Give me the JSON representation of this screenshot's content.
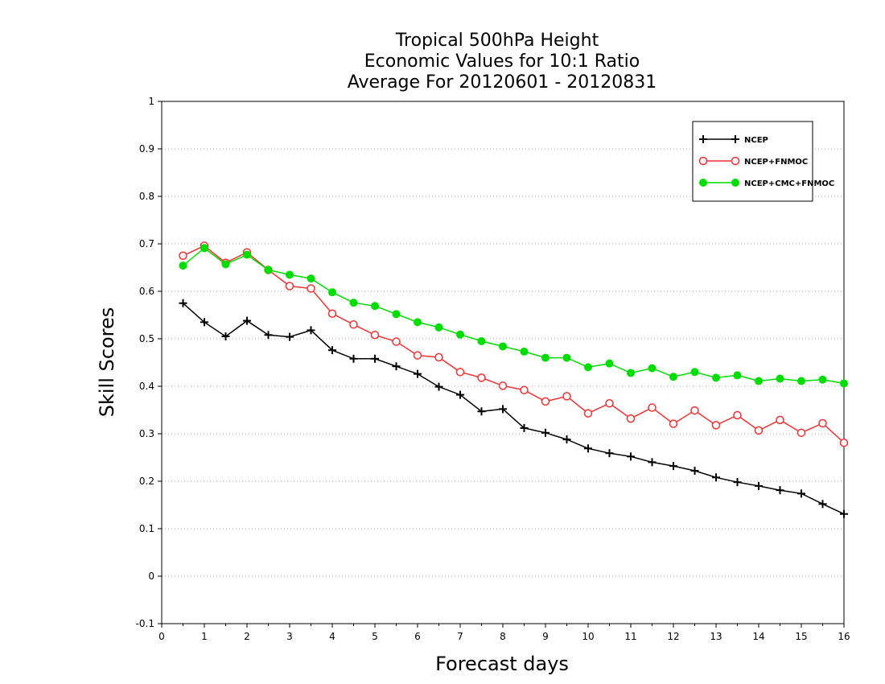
{
  "chart_data": {
    "type": "line",
    "title_lines": [
      "Tropical 500hPa Height",
      "Economic Values for 10:1 Ratio",
      "Average For 20120601 - 20120831"
    ],
    "xlabel": "Forecast days",
    "ylabel": "Skill Scores",
    "xlim": [
      0,
      16
    ],
    "ylim": [
      -0.1,
      1
    ],
    "x_ticks": [
      0,
      1,
      2,
      3,
      4,
      5,
      6,
      7,
      8,
      9,
      10,
      11,
      12,
      13,
      14,
      15,
      16
    ],
    "x_tick_labels": [
      "0",
      "1",
      "2",
      "3",
      "4",
      "5",
      "6",
      "7",
      "8",
      "9",
      "10",
      "11",
      "12",
      "13",
      "14",
      "15",
      "16"
    ],
    "y_ticks": [
      -0.1,
      0,
      0.1,
      0.2,
      0.3,
      0.4,
      0.5,
      0.6,
      0.7,
      0.8,
      0.9,
      1
    ],
    "y_tick_labels": [
      "-0.1",
      "0",
      "0.1",
      "0.2",
      "0.3",
      "0.4",
      "0.5",
      "0.6",
      "0.7",
      "0.8",
      "0.9",
      "1"
    ],
    "grid": "horizontal dotted",
    "legend_position": "top-right",
    "x": [
      0.5,
      1,
      1.5,
      2,
      2.5,
      3,
      3.5,
      4,
      4.5,
      5,
      5.5,
      6,
      6.5,
      7,
      7.5,
      8,
      8.5,
      9,
      9.5,
      10,
      10.5,
      11,
      11.5,
      12,
      12.5,
      13,
      13.5,
      14,
      14.5,
      15,
      15.5,
      16
    ],
    "series": [
      {
        "name": "NCEP",
        "color": "#000000",
        "marker": "plus",
        "values": [
          0.575,
          0.535,
          0.505,
          0.538,
          0.508,
          0.504,
          0.518,
          0.476,
          0.458,
          0.458,
          0.442,
          0.426,
          0.399,
          0.382,
          0.347,
          0.352,
          0.312,
          0.302,
          0.288,
          0.269,
          0.259,
          0.252,
          0.24,
          0.232,
          0.222,
          0.208,
          0.198,
          0.19,
          0.181,
          0.174,
          0.152,
          0.131
        ]
      },
      {
        "name": "NCEP+FNMOC",
        "color": "#ee3333",
        "marker": "open-circle",
        "values": [
          0.675,
          0.696,
          0.66,
          0.682,
          0.645,
          0.611,
          0.606,
          0.553,
          0.53,
          0.508,
          0.494,
          0.465,
          0.461,
          0.43,
          0.418,
          0.401,
          0.392,
          0.368,
          0.379,
          0.343,
          0.364,
          0.332,
          0.355,
          0.321,
          0.349,
          0.318,
          0.339,
          0.307,
          0.329,
          0.302,
          0.322,
          0.281
        ]
      },
      {
        "name": "NCEP+CMC+FNMOC",
        "color": "#00dd00",
        "marker": "filled-circle",
        "values": [
          0.654,
          0.691,
          0.657,
          0.677,
          0.645,
          0.635,
          0.627,
          0.598,
          0.576,
          0.569,
          0.552,
          0.535,
          0.524,
          0.509,
          0.495,
          0.484,
          0.473,
          0.46,
          0.46,
          0.44,
          0.448,
          0.428,
          0.438,
          0.42,
          0.43,
          0.418,
          0.423,
          0.411,
          0.416,
          0.411,
          0.414,
          0.406
        ]
      }
    ]
  }
}
